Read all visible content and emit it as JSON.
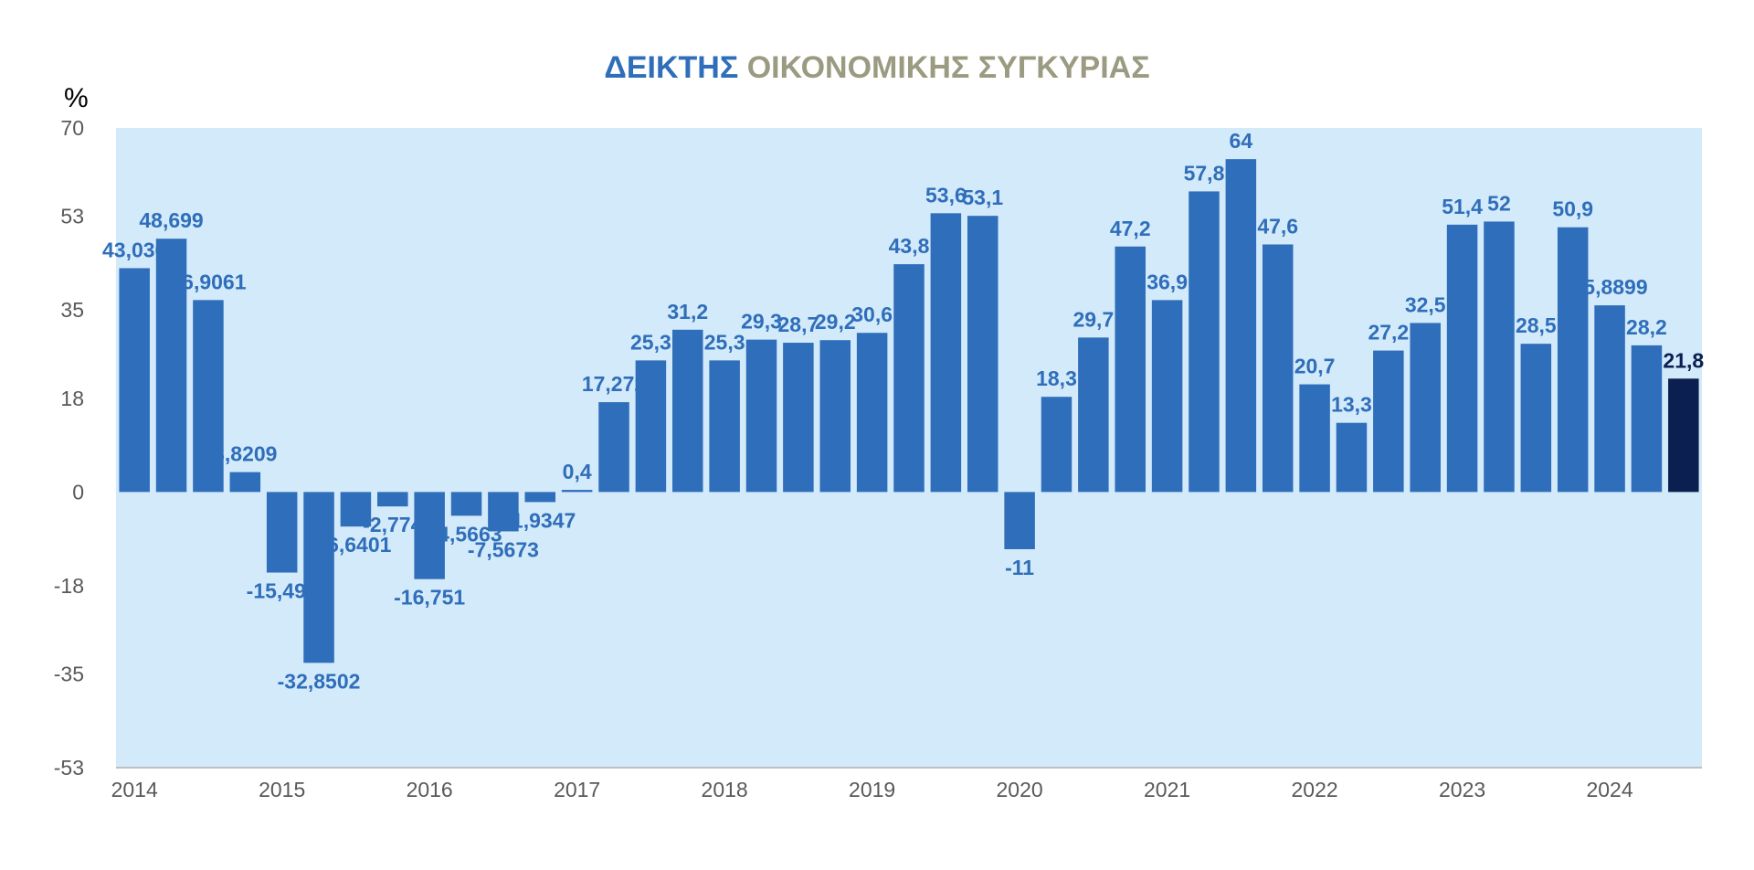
{
  "chart_data": {
    "type": "bar",
    "title_part1": "ΔΕΙΚΤΗΣ",
    "title_part2": "ΟΙΚΟΝΟΜΙΚΗΣ ΣΥΓΚΥΡΙΑΣ",
    "ylabel": "%",
    "xlabel": "",
    "ylim": [
      -53,
      70
    ],
    "yticks": [
      "70",
      "53",
      "35",
      "18",
      "0",
      "-18",
      "-35",
      "-53"
    ],
    "ytick_values": [
      70,
      53,
      35,
      18,
      0,
      -18,
      -35,
      -53
    ],
    "year_labels": [
      "2014",
      "2015",
      "2016",
      "2017",
      "2018",
      "2019",
      "2020",
      "2021",
      "2022",
      "2023",
      "2024"
    ],
    "grid": false,
    "legend": "none",
    "values": [
      43.036,
      48.699,
      36.9061,
      3.8209,
      -15.493,
      -32.8502,
      -6.6401,
      -2.774,
      -16.751,
      -4.5663,
      -7.5673,
      -1.9347,
      0.4,
      17.272,
      25.3,
      31.2,
      25.3,
      29.3,
      28.7,
      29.2,
      30.6,
      43.8,
      53.6,
      53.1,
      -11,
      18.3,
      29.7,
      47.2,
      36.9,
      57.8,
      64,
      47.6,
      20.7,
      13.3,
      27.2,
      32.5,
      51.4,
      52,
      28.5,
      50.9,
      35.8899,
      28.2,
      21.8
    ],
    "labels": [
      "43,036",
      "48,699",
      "36,9061",
      "3,8209",
      "-15,493",
      "-32,8502",
      "-6,6401",
      "-2,774",
      "-16,751",
      "-4,5663",
      "-7,5673",
      "-1,9347",
      "0,4",
      "17,272",
      "25,3",
      "31,2",
      "25,3",
      "29,3",
      "28,7",
      "29,2",
      "30,6",
      "43,8",
      "53,6",
      "53,1",
      "-11",
      "18,3",
      "29,7",
      "47,2",
      "36,9",
      "57,8",
      "64",
      "47,6",
      "20,7",
      "13,3",
      "27,2",
      "32,5",
      "51,4",
      "52",
      "28,5",
      "50,9",
      "35,8899",
      "28,2",
      "21,8"
    ],
    "colors": {
      "bar": "#2F6EBA",
      "bar_last": "#0B1F50",
      "plot_bg": "#D3EAFA",
      "title_part1": "#2F6EBA",
      "title_part2": "#9B9B82",
      "label": "#2F6EBA",
      "label_last": "#0B1F50",
      "axis": "#BFBFBF"
    }
  }
}
